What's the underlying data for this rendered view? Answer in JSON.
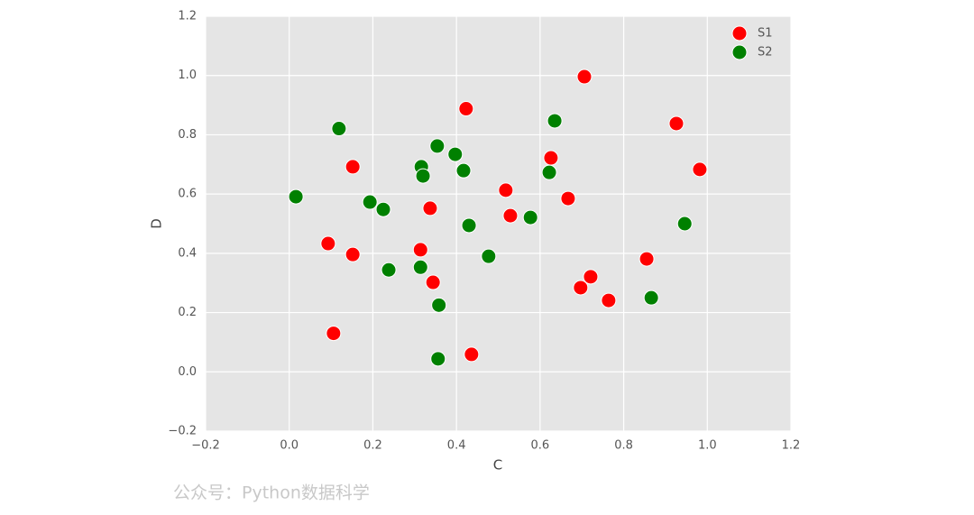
{
  "chart_data": {
    "type": "scatter",
    "xlabel": "C",
    "ylabel": "D",
    "xlim": [
      -0.2,
      1.2
    ],
    "ylim": [
      -0.2,
      1.2
    ],
    "xticks": [
      {
        "value": -0.2,
        "label": "−0.2"
      },
      {
        "value": 0,
        "label": "0.0"
      },
      {
        "value": 0.2,
        "label": "0.2"
      },
      {
        "value": 0.4,
        "label": "0.4"
      },
      {
        "value": 0.6,
        "label": "0.6"
      },
      {
        "value": 0.8,
        "label": "0.8"
      },
      {
        "value": 1,
        "label": "1.0"
      },
      {
        "value": 1.2,
        "label": "1.2"
      }
    ],
    "yticks": [
      {
        "value": -0.2,
        "label": "−0.2"
      },
      {
        "value": 0,
        "label": "0.0"
      },
      {
        "value": 0.2,
        "label": "0.2"
      },
      {
        "value": 0.4,
        "label": "0.4"
      },
      {
        "value": 0.6,
        "label": "0.6"
      },
      {
        "value": 0.8,
        "label": "0.8"
      },
      {
        "value": 1,
        "label": "1.0"
      },
      {
        "value": 1.2,
        "label": "1.2"
      }
    ],
    "grid": true,
    "legend": "upper right",
    "series": [
      {
        "name": "S1",
        "color": "#ff0000",
        "x": [
          0.093,
          0.106,
          0.152,
          0.152,
          0.314,
          0.337,
          0.344,
          0.423,
          0.436,
          0.518,
          0.529,
          0.626,
          0.667,
          0.697,
          0.706,
          0.721,
          0.764,
          0.855,
          0.926,
          0.982
        ],
        "values": [
          0.433,
          0.13,
          0.692,
          0.396,
          0.412,
          0.552,
          0.302,
          0.888,
          0.059,
          0.613,
          0.527,
          0.722,
          0.585,
          0.284,
          0.996,
          0.321,
          0.241,
          0.381,
          0.838,
          0.683
        ]
      },
      {
        "name": "S2",
        "color": "#008000",
        "x": [
          0.016,
          0.119,
          0.193,
          0.225,
          0.238,
          0.316,
          0.32,
          0.314,
          0.354,
          0.358,
          0.356,
          0.397,
          0.417,
          0.43,
          0.477,
          0.577,
          0.622,
          0.635,
          0.866,
          0.946
        ],
        "values": [
          0.591,
          0.821,
          0.573,
          0.548,
          0.344,
          0.692,
          0.661,
          0.353,
          0.762,
          0.225,
          0.044,
          0.734,
          0.679,
          0.494,
          0.39,
          0.521,
          0.673,
          0.847,
          0.25,
          0.5
        ]
      }
    ]
  },
  "watermark": "公众号：Python数据科学"
}
